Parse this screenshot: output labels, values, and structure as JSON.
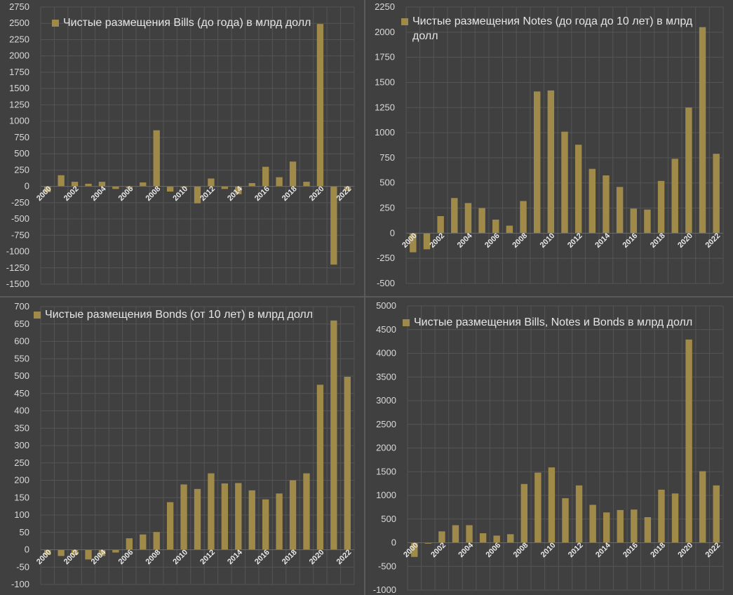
{
  "colors": {
    "bar": "#a08a4a",
    "grid": "#555555",
    "axis": "#6a6a6a",
    "background": "#404040"
  },
  "chart_data": [
    {
      "type": "bar",
      "title": "",
      "legend": "Чистые размещения Bills (до года) в млрд долл",
      "legend_position": "top",
      "categories": [
        "2000",
        "2001",
        "2002",
        "2003",
        "2004",
        "2005",
        "2006",
        "2007",
        "2008",
        "2009",
        "2010",
        "2011",
        "2012",
        "2013",
        "2014",
        "2015",
        "2016",
        "2017",
        "2018",
        "2019",
        "2020",
        "2021",
        "2022"
      ],
      "x_tick_labels": [
        "2000",
        "2002",
        "2004",
        "2006",
        "2008",
        "2010",
        "2012",
        "2014",
        "2016",
        "2018",
        "2020",
        "2022"
      ],
      "values": [
        -90,
        170,
        70,
        40,
        70,
        -40,
        -30,
        60,
        860,
        -80,
        -20,
        -260,
        120,
        -40,
        -120,
        50,
        300,
        140,
        380,
        70,
        2490,
        -1200,
        -70
      ],
      "ylim": [
        -1500,
        2750
      ],
      "yticks": [
        -1500,
        -1250,
        -1000,
        -750,
        -500,
        -250,
        0,
        250,
        500,
        750,
        1000,
        1250,
        1500,
        1750,
        2000,
        2250,
        2500,
        2750
      ],
      "grid": true
    },
    {
      "type": "bar",
      "title": "",
      "legend": "Чистые размещения Notes (до года до 10 лет) в млрд долл",
      "legend_position": "top",
      "categories": [
        "2000",
        "2001",
        "2002",
        "2003",
        "2004",
        "2005",
        "2006",
        "2007",
        "2008",
        "2009",
        "2010",
        "2011",
        "2012",
        "2013",
        "2014",
        "2015",
        "2016",
        "2017",
        "2018",
        "2019",
        "2020",
        "2021",
        "2022"
      ],
      "x_tick_labels": [
        "2000",
        "2002",
        "2004",
        "2006",
        "2008",
        "2010",
        "2012",
        "2014",
        "2016",
        "2018",
        "2020",
        "2022"
      ],
      "values": [
        -190,
        -160,
        170,
        350,
        300,
        250,
        135,
        75,
        320,
        1410,
        1420,
        1010,
        880,
        640,
        575,
        460,
        245,
        235,
        520,
        740,
        1250,
        2050,
        790
      ],
      "ylim": [
        -500,
        2250
      ],
      "yticks": [
        -500,
        -250,
        0,
        250,
        500,
        750,
        1000,
        1250,
        1500,
        1750,
        2000,
        2250
      ],
      "grid": true
    },
    {
      "type": "bar",
      "title": "",
      "legend": "Чистые размещения Bonds (от 10 лет) в млрд долл",
      "legend_position": "top",
      "categories": [
        "2000",
        "2001",
        "2002",
        "2003",
        "2004",
        "2005",
        "2006",
        "2007",
        "2008",
        "2009",
        "2010",
        "2011",
        "2012",
        "2013",
        "2014",
        "2015",
        "2016",
        "2017",
        "2018",
        "2019",
        "2020",
        "2021",
        "2022"
      ],
      "x_tick_labels": [
        "2000",
        "2002",
        "2004",
        "2006",
        "2008",
        "2010",
        "2012",
        "2014",
        "2016",
        "2018",
        "2020",
        "2022"
      ],
      "values": [
        -15,
        -18,
        -15,
        -28,
        -18,
        -8,
        33,
        44,
        51,
        137,
        188,
        175,
        220,
        191,
        192,
        171,
        145,
        162,
        200,
        220,
        475,
        660,
        498
      ],
      "ylim": [
        -100,
        700
      ],
      "yticks": [
        -100,
        -50,
        0,
        50,
        100,
        150,
        200,
        250,
        300,
        350,
        400,
        450,
        500,
        550,
        600,
        650,
        700
      ],
      "grid": true
    },
    {
      "type": "bar",
      "title": "",
      "legend": "Чистые размещения Bills, Notes и Bonds в млрд долл",
      "legend_position": "top",
      "categories": [
        "2000",
        "2001",
        "2002",
        "2003",
        "2004",
        "2005",
        "2006",
        "2007",
        "2008",
        "2009",
        "2010",
        "2011",
        "2012",
        "2013",
        "2014",
        "2015",
        "2016",
        "2017",
        "2018",
        "2019",
        "2020",
        "2021",
        "2022"
      ],
      "x_tick_labels": [
        "2000",
        "2002",
        "2004",
        "2006",
        "2008",
        "2010",
        "2012",
        "2014",
        "2016",
        "2018",
        "2020",
        "2022"
      ],
      "values": [
        -300,
        -20,
        240,
        370,
        370,
        200,
        150,
        180,
        1240,
        1480,
        1590,
        940,
        1210,
        800,
        640,
        690,
        700,
        540,
        1120,
        1040,
        4290,
        1510,
        1210
      ],
      "ylim": [
        -1000,
        5000
      ],
      "yticks": [
        -1000,
        -500,
        0,
        500,
        1000,
        1500,
        2000,
        2500,
        3000,
        3500,
        4000,
        4500,
        5000
      ],
      "grid": true
    }
  ]
}
